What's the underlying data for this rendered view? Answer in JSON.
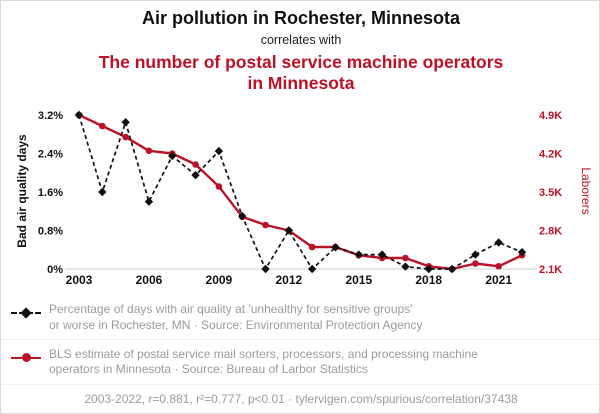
{
  "header": {
    "title": "Air pollution in Rochester, Minnesota",
    "subtitle": "correlates with",
    "red_title": "The number of postal service machine operators in Minnesota"
  },
  "colors": {
    "accent": "#bb1226",
    "black_series": "#111111",
    "gray_text": "#9b9b9b",
    "axis_line": "#cccccc"
  },
  "chart_data": {
    "type": "line",
    "x": [
      2003,
      2004,
      2005,
      2006,
      2007,
      2008,
      2009,
      2010,
      2011,
      2012,
      2013,
      2014,
      2015,
      2016,
      2017,
      2018,
      2019,
      2020,
      2021,
      2022
    ],
    "series": [
      {
        "key": "air-quality",
        "name": "Bad air quality days (Rochester, MN)",
        "axis": "left",
        "color": "#111111",
        "style": "dashed",
        "marker": "diamond",
        "values": [
          3.2,
          1.6,
          3.05,
          1.4,
          2.35,
          1.95,
          2.45,
          1.1,
          0,
          0.8,
          0,
          0.45,
          0.3,
          0.3,
          0.05,
          0,
          0,
          0.3,
          0.55,
          0.35
        ]
      },
      {
        "key": "laborers",
        "name": "Postal service machine operators in Minnesota (thousands)",
        "axis": "right",
        "color": "#bb1226",
        "style": "solid",
        "marker": "circle",
        "values": [
          4.9,
          4.7,
          4.5,
          4.25,
          4.2,
          4.0,
          3.6,
          3.05,
          2.9,
          2.8,
          2.5,
          2.5,
          2.35,
          2.3,
          2.3,
          2.15,
          2.1,
          2.2,
          2.15,
          2.35
        ]
      }
    ],
    "left_axis": {
      "label": "Bad air quality days",
      "ticks": [
        "0%",
        "0.8%",
        "1.6%",
        "2.4%",
        "3.2%"
      ],
      "tick_values": [
        0,
        0.8,
        1.6,
        2.4,
        3.2
      ],
      "range": [
        0,
        3.2
      ]
    },
    "right_axis": {
      "label": "Laborers",
      "ticks": [
        "2.1K",
        "2.8K",
        "3.5K",
        "4.2K",
        "4.9K"
      ],
      "tick_values": [
        2.1,
        2.8,
        3.5,
        4.2,
        4.9
      ],
      "range": [
        2.1,
        4.9
      ]
    },
    "x_axis": {
      "ticks": [
        2003,
        2006,
        2009,
        2012,
        2015,
        2018,
        2021
      ]
    },
    "grid": false,
    "legend_position": "bottom"
  },
  "legend": [
    {
      "key": "air-quality",
      "lines": [
        "Percentage of days with air quality at 'unhealthy for sensitive groups'",
        "or worse in Rochester, MN · Source: Environmental Protection Agency"
      ]
    },
    {
      "key": "laborers",
      "lines": [
        "BLS estimate of postal service mail sorters, processors, and processing machine",
        "operators in Minnesota · Source: Bureau of Larbor Statistics"
      ]
    }
  ],
  "footer": "2003-2022, r=0.881, r²=0.777, p<0.01 · tylervigen.com/spurious/correlation/37438"
}
